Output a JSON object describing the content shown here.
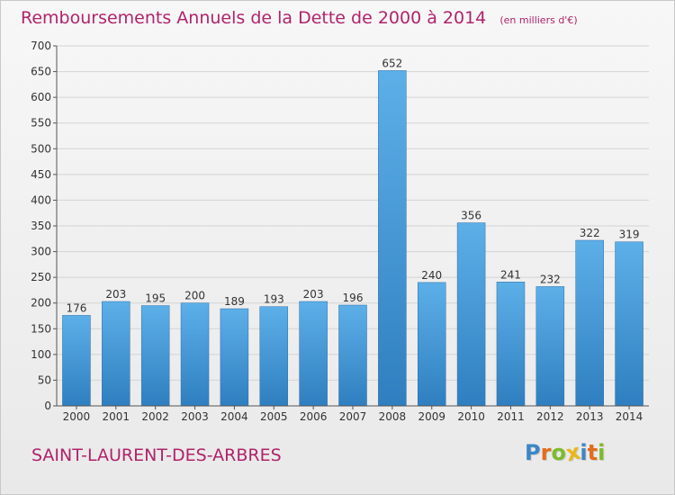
{
  "chart_data": {
    "type": "bar",
    "title": "Remboursements Annuels de la Dette de 2000 à 2014",
    "subtitle": "(en milliers d'€)",
    "categories": [
      "2000",
      "2001",
      "2002",
      "2003",
      "2004",
      "2005",
      "2006",
      "2007",
      "2008",
      "2009",
      "2010",
      "2011",
      "2012",
      "2013",
      "2014"
    ],
    "values": [
      176,
      203,
      195,
      200,
      189,
      193,
      203,
      196,
      652,
      240,
      356,
      241,
      232,
      322,
      319
    ],
    "ylim": [
      0,
      700
    ],
    "yticks": [
      0,
      50,
      100,
      150,
      200,
      250,
      300,
      350,
      400,
      450,
      500,
      550,
      600,
      650,
      700
    ],
    "grid": true,
    "bar_color": "#4a9fdc",
    "data_labels": true
  },
  "footer": {
    "place": "SAINT-LAURENT-DES-ARBRES"
  },
  "logo": {
    "text": "Proxiti",
    "letters": [
      {
        "ch": "P",
        "color": "#3d86c6"
      },
      {
        "ch": "r",
        "color": "#e36d1a"
      },
      {
        "ch": "o",
        "color": "#7cbb2a"
      },
      {
        "ch": "x",
        "color": "#e8b71a"
      },
      {
        "ch": "i",
        "color": "#3d86c6"
      },
      {
        "ch": "t",
        "color": "#e36d1a"
      },
      {
        "ch": "i",
        "color": "#7cbb2a"
      }
    ]
  },
  "colors": {
    "title": "#b0236b",
    "axis_text": "#333333",
    "grid": "#d4d4d4"
  }
}
